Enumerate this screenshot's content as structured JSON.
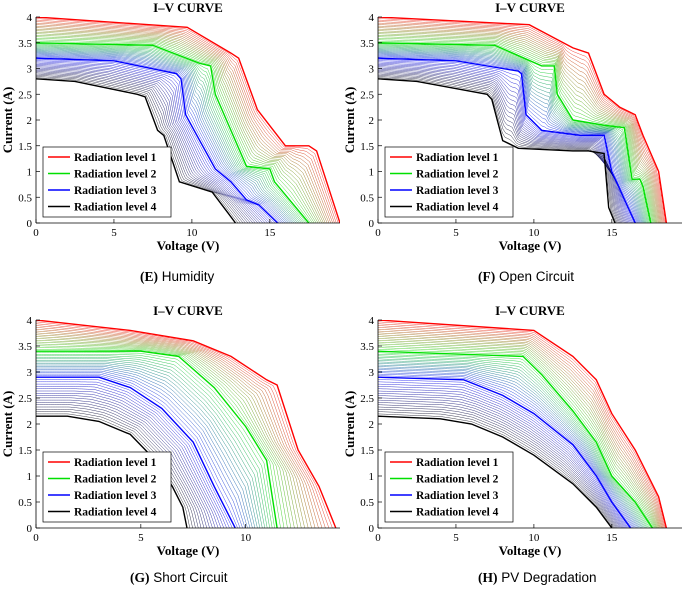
{
  "figure": {
    "captions": [
      {
        "letter": "(E)",
        "text": "Humidity"
      },
      {
        "letter": "(F)",
        "text": "Open Circuit"
      },
      {
        "letter": "(G)",
        "text": "Short Circuit"
      },
      {
        "letter": "(H)",
        "text": "PV Degradation"
      }
    ]
  },
  "colors": {
    "level1": "#ff0000",
    "level2": "#00e000",
    "level3": "#0000ff",
    "level4": "#000000"
  },
  "chart_data": [
    {
      "type": "line",
      "title": "I–V CURVE",
      "xlabel": "Voltage (V)",
      "ylabel": "Current (A)",
      "xlim": [
        0,
        19.5
      ],
      "ylim": [
        0,
        4
      ],
      "xticks": [
        0,
        5,
        10,
        15
      ],
      "yticks": [
        0,
        0.5,
        1,
        1.5,
        2,
        2.5,
        3,
        3.5,
        4
      ],
      "legend": [
        "Radiation level 1",
        "Radiation level 2",
        "Radiation level 3",
        "Radiation level 4"
      ],
      "legend_position": "lower-left",
      "series": [
        {
          "name": "Radiation level 1",
          "points": [
            [
              0,
              4
            ],
            [
              9.7,
              3.8
            ],
            [
              12.5,
              3.3
            ],
            [
              13,
              3.2
            ],
            [
              14.2,
              2.2
            ],
            [
              16,
              1.5
            ],
            [
              17.5,
              1.5
            ],
            [
              18,
              1.4
            ],
            [
              19.5,
              0
            ]
          ]
        },
        {
          "name": "Radiation level 2",
          "points": [
            [
              0,
              3.5
            ],
            [
              7.5,
              3.45
            ],
            [
              10.5,
              3.1
            ],
            [
              11.2,
              3.05
            ],
            [
              11.5,
              2.5
            ],
            [
              12.5,
              1.8
            ],
            [
              13.5,
              1.1
            ],
            [
              15,
              1.05
            ],
            [
              15.3,
              0.8
            ],
            [
              17.5,
              0
            ]
          ]
        },
        {
          "name": "Radiation level 3",
          "points": [
            [
              0,
              3.2
            ],
            [
              5,
              3.15
            ],
            [
              9,
              2.9
            ],
            [
              9.3,
              2.8
            ],
            [
              9.6,
              2.1
            ],
            [
              10.5,
              1.6
            ],
            [
              11.5,
              1.05
            ],
            [
              12.5,
              0.8
            ],
            [
              13.5,
              0.45
            ],
            [
              14.3,
              0.35
            ],
            [
              15.5,
              0
            ]
          ]
        },
        {
          "name": "Radiation level 4",
          "points": [
            [
              0,
              2.8
            ],
            [
              2.5,
              2.75
            ],
            [
              6.5,
              2.5
            ],
            [
              7,
              2.45
            ],
            [
              7.8,
              1.8
            ],
            [
              8.2,
              1.7
            ],
            [
              9.2,
              0.8
            ],
            [
              11.3,
              0.6
            ],
            [
              12.3,
              0.2
            ],
            [
              12.8,
              0
            ]
          ]
        }
      ]
    },
    {
      "type": "line",
      "title": "I–V CURVE",
      "xlabel": "Voltage (V)",
      "ylabel": "Current (A)",
      "xlim": [
        0,
        19.5
      ],
      "ylim": [
        0,
        4
      ],
      "xticks": [
        0,
        5,
        10,
        15
      ],
      "yticks": [
        0,
        0.5,
        1,
        1.5,
        2,
        2.5,
        3,
        3.5,
        4
      ],
      "legend": [
        "Radiation level 1",
        "Radiation level 2",
        "Radiation level 3",
        "Radiation level 4"
      ],
      "legend_position": "lower-left",
      "series": [
        {
          "name": "Radiation level 1",
          "points": [
            [
              0,
              4
            ],
            [
              9.7,
              3.85
            ],
            [
              12.5,
              3.4
            ],
            [
              13.5,
              3.3
            ],
            [
              14.5,
              2.5
            ],
            [
              15.5,
              2.25
            ],
            [
              16.5,
              2.1
            ],
            [
              17,
              1.7
            ],
            [
              18,
              1
            ],
            [
              18.5,
              0
            ]
          ]
        },
        {
          "name": "Radiation level 2",
          "points": [
            [
              0,
              3.5
            ],
            [
              7.5,
              3.45
            ],
            [
              10.5,
              3.05
            ],
            [
              11.3,
              3.05
            ],
            [
              11.5,
              2.5
            ],
            [
              12.5,
              2.0
            ],
            [
              14.5,
              1.9
            ],
            [
              15.8,
              1.85
            ],
            [
              16.3,
              0.85
            ],
            [
              16.8,
              0.85
            ],
            [
              17,
              0.7
            ],
            [
              17.5,
              0
            ]
          ]
        },
        {
          "name": "Radiation level 3",
          "points": [
            [
              0,
              3.2
            ],
            [
              5,
              3.15
            ],
            [
              9,
              2.95
            ],
            [
              9.2,
              2.9
            ],
            [
              9.5,
              2.1
            ],
            [
              10.5,
              1.8
            ],
            [
              13,
              1.7
            ],
            [
              14.5,
              1.7
            ],
            [
              15,
              1.0
            ],
            [
              15.3,
              0.8
            ],
            [
              16.5,
              0
            ]
          ]
        },
        {
          "name": "Radiation level 4",
          "points": [
            [
              0,
              2.8
            ],
            [
              2.5,
              2.75
            ],
            [
              7,
              2.5
            ],
            [
              7.3,
              2.4
            ],
            [
              8,
              1.6
            ],
            [
              9,
              1.45
            ],
            [
              12.5,
              1.4
            ],
            [
              13.5,
              1.4
            ],
            [
              14.5,
              1.35
            ],
            [
              14.8,
              0.3
            ],
            [
              15.2,
              0
            ]
          ]
        }
      ]
    },
    {
      "type": "line",
      "title": "I–V CURVE",
      "xlabel": "Voltage (V)",
      "ylabel": "Current (A)",
      "xlim": [
        0,
        14.5
      ],
      "ylim": [
        0,
        4
      ],
      "xticks": [
        0,
        5,
        10
      ],
      "yticks": [
        0,
        0.5,
        1,
        1.5,
        2,
        2.5,
        3,
        3.5,
        4
      ],
      "legend": [
        "Radiation level 1",
        "Radiation level 2",
        "Radiation level 3",
        "Radiation level 4"
      ],
      "legend_position": "lower-left",
      "series": [
        {
          "name": "Radiation level 1",
          "points": [
            [
              0,
              4
            ],
            [
              4.5,
              3.8
            ],
            [
              7.5,
              3.6
            ],
            [
              9.3,
              3.3
            ],
            [
              11,
              2.85
            ],
            [
              11.5,
              2.75
            ],
            [
              12.5,
              1.5
            ],
            [
              13.5,
              0.8
            ],
            [
              14.3,
              0
            ]
          ]
        },
        {
          "name": "Radiation level 2",
          "points": [
            [
              0,
              3.4
            ],
            [
              5,
              3.4
            ],
            [
              6.8,
              3.3
            ],
            [
              8.5,
              2.7
            ],
            [
              10,
              1.95
            ],
            [
              11,
              1.3
            ],
            [
              11.5,
              0
            ]
          ]
        },
        {
          "name": "Radiation level 3",
          "points": [
            [
              0,
              2.9
            ],
            [
              3,
              2.9
            ],
            [
              4.5,
              2.7
            ],
            [
              6,
              2.3
            ],
            [
              7.5,
              1.65
            ],
            [
              8.5,
              0.8
            ],
            [
              9.5,
              0
            ]
          ]
        },
        {
          "name": "Radiation level 4",
          "points": [
            [
              0,
              2.15
            ],
            [
              1.5,
              2.15
            ],
            [
              3,
              2.05
            ],
            [
              4.5,
              1.8
            ],
            [
              5.7,
              1.3
            ],
            [
              6.5,
              0.8
            ],
            [
              7,
              0.4
            ],
            [
              7.2,
              0
            ]
          ]
        }
      ]
    },
    {
      "type": "line",
      "title": "I–V CURVE",
      "xlabel": "Voltage (V)",
      "ylabel": "Current (A)",
      "xlim": [
        0,
        19.5
      ],
      "ylim": [
        0,
        4
      ],
      "xticks": [
        0,
        5,
        10,
        15
      ],
      "yticks": [
        0,
        0.5,
        1,
        1.5,
        2,
        2.5,
        3,
        3.5,
        4
      ],
      "legend": [
        "Radiation level 1",
        "Radiation level 2",
        "Radiation level 3",
        "Radiation level 4"
      ],
      "legend_position": "lower-left",
      "series": [
        {
          "name": "Radiation level 1",
          "points": [
            [
              0,
              4
            ],
            [
              10,
              3.8
            ],
            [
              12.5,
              3.3
            ],
            [
              14,
              2.85
            ],
            [
              15,
              2.2
            ],
            [
              16.5,
              1.5
            ],
            [
              18,
              0.6
            ],
            [
              18.5,
              0
            ]
          ]
        },
        {
          "name": "Radiation level 2",
          "points": [
            [
              0,
              3.4
            ],
            [
              9.3,
              3.3
            ],
            [
              10.5,
              2.95
            ],
            [
              12.5,
              2.25
            ],
            [
              14,
              1.65
            ],
            [
              15,
              1.0
            ],
            [
              16.5,
              0.5
            ],
            [
              17.6,
              0
            ]
          ]
        },
        {
          "name": "Radiation level 3",
          "points": [
            [
              0,
              2.9
            ],
            [
              5.5,
              2.85
            ],
            [
              8,
              2.55
            ],
            [
              10,
              2.2
            ],
            [
              12.5,
              1.6
            ],
            [
              14,
              1.0
            ],
            [
              15,
              0.5
            ],
            [
              16.2,
              0
            ]
          ]
        },
        {
          "name": "Radiation level 4",
          "points": [
            [
              0,
              2.15
            ],
            [
              4,
              2.1
            ],
            [
              6,
              2.0
            ],
            [
              8,
              1.75
            ],
            [
              10,
              1.4
            ],
            [
              12.5,
              0.85
            ],
            [
              14,
              0.4
            ],
            [
              15,
              0
            ]
          ]
        }
      ]
    }
  ]
}
